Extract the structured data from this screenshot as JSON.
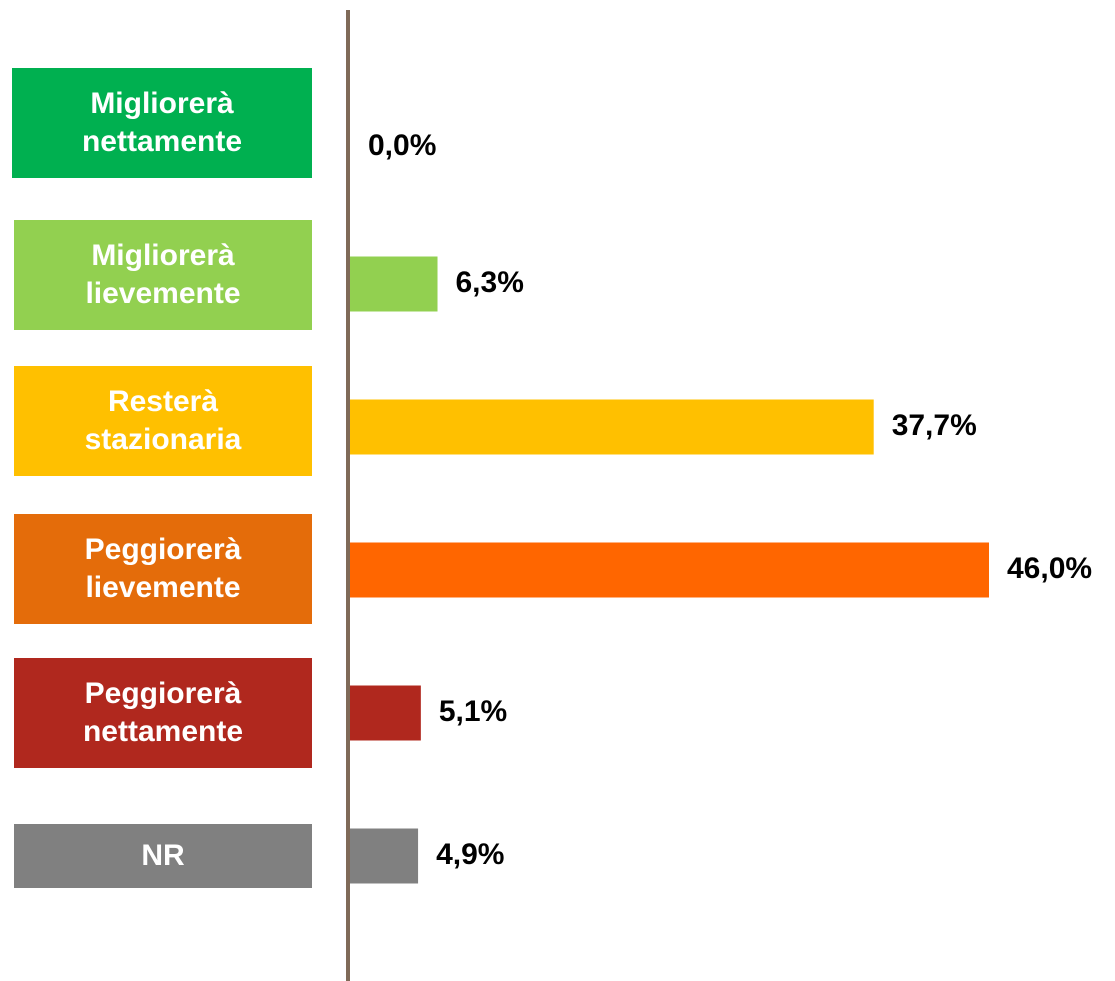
{
  "chart_data": {
    "type": "bar",
    "orientation": "horizontal",
    "categories": [
      "Migliorerà nettamente",
      "Migliorerà lievemente",
      "Resterà stazionaria",
      "Peggiorerà lievemente",
      "Peggiorerà nettamente",
      "NR"
    ],
    "values": [
      0.0,
      6.3,
      37.7,
      46.0,
      5.1,
      4.9
    ],
    "value_labels": [
      "0,0%",
      "6,3%",
      "37,7%",
      "46,0%",
      "5,1%",
      "4,9%"
    ],
    "colors": [
      "#00b050",
      "#92d050",
      "#ffc000",
      "#ff6600",
      "#b0281e",
      "#808080"
    ],
    "label_colors": [
      "#00b050",
      "#92d050",
      "#ffc000",
      "#e46c0a",
      "#b0281e",
      "#808080"
    ]
  }
}
